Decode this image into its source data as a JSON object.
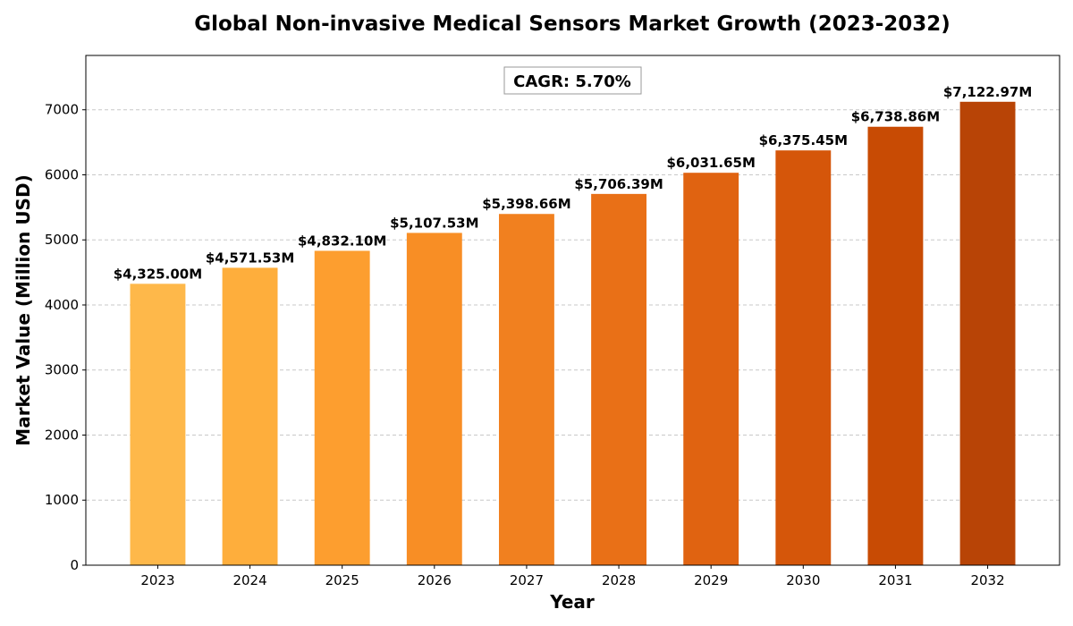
{
  "chart_data": {
    "type": "bar",
    "title": "Global Non-invasive Medical Sensors Market Growth (2023-2032)",
    "xlabel": "Year",
    "ylabel": "Market Value (Million USD)",
    "categories": [
      "2023",
      "2024",
      "2025",
      "2026",
      "2027",
      "2028",
      "2029",
      "2030",
      "2031",
      "2032"
    ],
    "values": [
      4325.0,
      4571.53,
      4832.1,
      5107.53,
      5398.66,
      5706.39,
      6031.65,
      6375.45,
      6738.86,
      7122.97
    ],
    "data_labels": [
      "$4,325.00M",
      "$4,571.53M",
      "$4,832.10M",
      "$5,107.53M",
      "$5,398.66M",
      "$5,706.39M",
      "$6,031.65M",
      "$6,375.45M",
      "$6,738.86M",
      "$7,122.97M"
    ],
    "colors": [
      "#FEB84A",
      "#FEAE3C",
      "#FD9E2F",
      "#F88E25",
      "#F1801F",
      "#E97017",
      "#E06311",
      "#D5560A",
      "#C84B04",
      "#B84406"
    ],
    "ylim": [
      0,
      7835
    ],
    "yticks": [
      0,
      1000,
      2000,
      3000,
      4000,
      5000,
      6000,
      7000
    ],
    "grid": "y-dashed",
    "annotation": "CAGR: 5.70%"
  }
}
